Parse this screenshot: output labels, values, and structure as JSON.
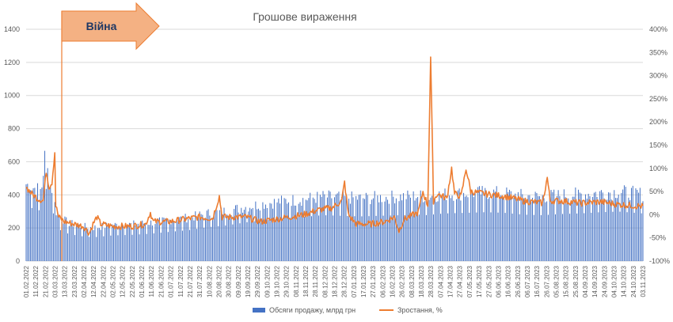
{
  "chart_data": {
    "type": "bar+line",
    "title": "Грошове вираження",
    "annotation": "Війна",
    "colors": {
      "bars": "#4472c4",
      "line": "#ed7d31",
      "arrow_fill": "#f4b183",
      "arrow_stroke": "#ed7d31",
      "grid": "#d9d9d9"
    },
    "y_left": {
      "min": 0,
      "max": 1400,
      "ticks": [
        "0",
        "200",
        "400",
        "600",
        "800",
        "1000",
        "1200",
        "1400"
      ]
    },
    "y_right": {
      "min": -100,
      "max": 400,
      "ticks": [
        "-100%",
        "-50%",
        "0%",
        "50%",
        "100%",
        "150%",
        "200%",
        "250%",
        "300%",
        "350%",
        "400%"
      ]
    },
    "x_ticks": [
      "01.02.2022",
      "11.02.2022",
      "21.02.2022",
      "03.03.2022",
      "13.03.2022",
      "23.03.2022",
      "02.04.2022",
      "12.04.2022",
      "22.04.2022",
      "02.05.2022",
      "12.05.2022",
      "22.05.2022",
      "01.06.2022",
      "11.06.2022",
      "21.06.2022",
      "01.07.2022",
      "11.07.2022",
      "21.07.2022",
      "31.07.2022",
      "10.08.2022",
      "20.08.2022",
      "30.08.2022",
      "09.09.2022",
      "19.09.2022",
      "29.09.2022",
      "09.10.2022",
      "19.10.2022",
      "29.10.2022",
      "08.11.2022",
      "18.11.2022",
      "28.11.2022",
      "08.12.2022",
      "18.12.2022",
      "28.12.2022",
      "07.01.2023",
      "17.01.2023",
      "27.01.2023",
      "06.02.2023",
      "16.02.2023",
      "26.02.2023",
      "08.03.2023",
      "18.03.2023",
      "28.03.2023",
      "07.04.2023",
      "17.04.2023",
      "27.04.2023",
      "07.05.2023",
      "17.05.2023",
      "27.05.2023",
      "06.06.2023",
      "16.06.2023",
      "26.06.2023",
      "06.07.2023",
      "16.07.2023",
      "26.07.2023",
      "05.08.2023",
      "15.08.2023",
      "25.08.2023",
      "04.09.2023",
      "14.09.2023",
      "24.09.2023",
      "04.10.2023",
      "14.10.2023",
      "24.10.2023",
      "03.11.2023"
    ],
    "x_range_days": [
      0,
      645
    ],
    "bars_profile": [
      [
        0,
        460
      ],
      [
        8,
        440
      ],
      [
        16,
        420
      ],
      [
        20,
        650
      ],
      [
        24,
        470
      ],
      [
        28,
        420
      ],
      [
        31,
        300
      ],
      [
        36,
        260
      ],
      [
        44,
        230
      ],
      [
        56,
        210
      ],
      [
        70,
        200
      ],
      [
        90,
        215
      ],
      [
        110,
        220
      ],
      [
        130,
        230
      ],
      [
        150,
        245
      ],
      [
        170,
        260
      ],
      [
        190,
        285
      ],
      [
        210,
        300
      ],
      [
        230,
        325
      ],
      [
        250,
        345
      ],
      [
        270,
        360
      ],
      [
        290,
        370
      ],
      [
        310,
        385
      ],
      [
        330,
        380
      ],
      [
        350,
        375
      ],
      [
        370,
        380
      ],
      [
        390,
        385
      ],
      [
        410,
        390
      ],
      [
        420,
        385
      ],
      [
        430,
        395
      ],
      [
        440,
        400
      ],
      [
        460,
        405
      ],
      [
        480,
        410
      ],
      [
        500,
        405
      ],
      [
        520,
        390
      ],
      [
        540,
        385
      ],
      [
        560,
        395
      ],
      [
        580,
        400
      ],
      [
        600,
        410
      ],
      [
        620,
        415
      ],
      [
        645,
        400
      ]
    ],
    "line_profile": [
      [
        0,
        60
      ],
      [
        6,
        45
      ],
      [
        12,
        35
      ],
      [
        18,
        30
      ],
      [
        21,
        95
      ],
      [
        24,
        60
      ],
      [
        27,
        70
      ],
      [
        30,
        135
      ],
      [
        31,
        20
      ],
      [
        34,
        -5
      ],
      [
        40,
        -15
      ],
      [
        50,
        -20
      ],
      [
        60,
        -25
      ],
      [
        66,
        -40
      ],
      [
        70,
        -20
      ],
      [
        74,
        -5
      ],
      [
        78,
        -20
      ],
      [
        90,
        -25
      ],
      [
        110,
        -25
      ],
      [
        125,
        -20
      ],
      [
        130,
        5
      ],
      [
        133,
        -15
      ],
      [
        150,
        -15
      ],
      [
        165,
        -10
      ],
      [
        180,
        -5
      ],
      [
        195,
        -8
      ],
      [
        202,
        40
      ],
      [
        205,
        -5
      ],
      [
        215,
        -5
      ],
      [
        230,
        -5
      ],
      [
        245,
        -15
      ],
      [
        260,
        -10
      ],
      [
        275,
        -5
      ],
      [
        290,
        0
      ],
      [
        305,
        10
      ],
      [
        320,
        15
      ],
      [
        330,
        30
      ],
      [
        333,
        70
      ],
      [
        337,
        0
      ],
      [
        345,
        -20
      ],
      [
        360,
        -20
      ],
      [
        375,
        -15
      ],
      [
        385,
        -5
      ],
      [
        390,
        -35
      ],
      [
        395,
        -10
      ],
      [
        405,
        0
      ],
      [
        410,
        5
      ],
      [
        415,
        50
      ],
      [
        420,
        20
      ],
      [
        423,
        340
      ],
      [
        426,
        30
      ],
      [
        430,
        45
      ],
      [
        440,
        35
      ],
      [
        445,
        100
      ],
      [
        448,
        45
      ],
      [
        455,
        40
      ],
      [
        460,
        100
      ],
      [
        465,
        50
      ],
      [
        480,
        45
      ],
      [
        500,
        40
      ],
      [
        520,
        30
      ],
      [
        540,
        25
      ],
      [
        545,
        80
      ],
      [
        548,
        30
      ],
      [
        560,
        30
      ],
      [
        580,
        25
      ],
      [
        600,
        28
      ],
      [
        620,
        22
      ],
      [
        645,
        18
      ]
    ],
    "legend": [
      {
        "label": "Обсяги продажу, млрд грн",
        "kind": "bar"
      },
      {
        "label": "Зростання, %",
        "kind": "line"
      }
    ]
  }
}
